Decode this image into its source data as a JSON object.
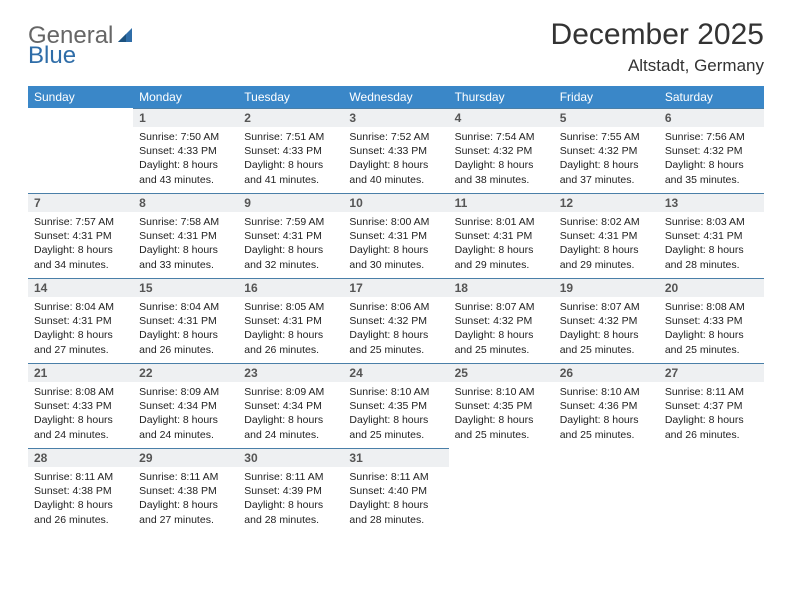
{
  "brand": {
    "part1": "General",
    "part2": "Blue"
  },
  "title": "December 2025",
  "location": "Altstadt, Germany",
  "header_bg": "#3a87c8",
  "header_fg": "#ffffff",
  "daynum_bg": "#eef0f2",
  "daynum_border": "#4a7fa8",
  "text_color": "#222222",
  "page_bg": "#ffffff",
  "fonts": {
    "title_size": 30,
    "location_size": 17,
    "header_size": 12,
    "body_size": 10.5
  },
  "days_of_week": [
    "Sunday",
    "Monday",
    "Tuesday",
    "Wednesday",
    "Thursday",
    "Friday",
    "Saturday"
  ],
  "weeks": [
    [
      null,
      {
        "n": "1",
        "sunrise": "7:50 AM",
        "sunset": "4:33 PM",
        "daylight": "8 hours and 43 minutes."
      },
      {
        "n": "2",
        "sunrise": "7:51 AM",
        "sunset": "4:33 PM",
        "daylight": "8 hours and 41 minutes."
      },
      {
        "n": "3",
        "sunrise": "7:52 AM",
        "sunset": "4:33 PM",
        "daylight": "8 hours and 40 minutes."
      },
      {
        "n": "4",
        "sunrise": "7:54 AM",
        "sunset": "4:32 PM",
        "daylight": "8 hours and 38 minutes."
      },
      {
        "n": "5",
        "sunrise": "7:55 AM",
        "sunset": "4:32 PM",
        "daylight": "8 hours and 37 minutes."
      },
      {
        "n": "6",
        "sunrise": "7:56 AM",
        "sunset": "4:32 PM",
        "daylight": "8 hours and 35 minutes."
      }
    ],
    [
      {
        "n": "7",
        "sunrise": "7:57 AM",
        "sunset": "4:31 PM",
        "daylight": "8 hours and 34 minutes."
      },
      {
        "n": "8",
        "sunrise": "7:58 AM",
        "sunset": "4:31 PM",
        "daylight": "8 hours and 33 minutes."
      },
      {
        "n": "9",
        "sunrise": "7:59 AM",
        "sunset": "4:31 PM",
        "daylight": "8 hours and 32 minutes."
      },
      {
        "n": "10",
        "sunrise": "8:00 AM",
        "sunset": "4:31 PM",
        "daylight": "8 hours and 30 minutes."
      },
      {
        "n": "11",
        "sunrise": "8:01 AM",
        "sunset": "4:31 PM",
        "daylight": "8 hours and 29 minutes."
      },
      {
        "n": "12",
        "sunrise": "8:02 AM",
        "sunset": "4:31 PM",
        "daylight": "8 hours and 29 minutes."
      },
      {
        "n": "13",
        "sunrise": "8:03 AM",
        "sunset": "4:31 PM",
        "daylight": "8 hours and 28 minutes."
      }
    ],
    [
      {
        "n": "14",
        "sunrise": "8:04 AM",
        "sunset": "4:31 PM",
        "daylight": "8 hours and 27 minutes."
      },
      {
        "n": "15",
        "sunrise": "8:04 AM",
        "sunset": "4:31 PM",
        "daylight": "8 hours and 26 minutes."
      },
      {
        "n": "16",
        "sunrise": "8:05 AM",
        "sunset": "4:31 PM",
        "daylight": "8 hours and 26 minutes."
      },
      {
        "n": "17",
        "sunrise": "8:06 AM",
        "sunset": "4:32 PM",
        "daylight": "8 hours and 25 minutes."
      },
      {
        "n": "18",
        "sunrise": "8:07 AM",
        "sunset": "4:32 PM",
        "daylight": "8 hours and 25 minutes."
      },
      {
        "n": "19",
        "sunrise": "8:07 AM",
        "sunset": "4:32 PM",
        "daylight": "8 hours and 25 minutes."
      },
      {
        "n": "20",
        "sunrise": "8:08 AM",
        "sunset": "4:33 PM",
        "daylight": "8 hours and 25 minutes."
      }
    ],
    [
      {
        "n": "21",
        "sunrise": "8:08 AM",
        "sunset": "4:33 PM",
        "daylight": "8 hours and 24 minutes."
      },
      {
        "n": "22",
        "sunrise": "8:09 AM",
        "sunset": "4:34 PM",
        "daylight": "8 hours and 24 minutes."
      },
      {
        "n": "23",
        "sunrise": "8:09 AM",
        "sunset": "4:34 PM",
        "daylight": "8 hours and 24 minutes."
      },
      {
        "n": "24",
        "sunrise": "8:10 AM",
        "sunset": "4:35 PM",
        "daylight": "8 hours and 25 minutes."
      },
      {
        "n": "25",
        "sunrise": "8:10 AM",
        "sunset": "4:35 PM",
        "daylight": "8 hours and 25 minutes."
      },
      {
        "n": "26",
        "sunrise": "8:10 AM",
        "sunset": "4:36 PM",
        "daylight": "8 hours and 25 minutes."
      },
      {
        "n": "27",
        "sunrise": "8:11 AM",
        "sunset": "4:37 PM",
        "daylight": "8 hours and 26 minutes."
      }
    ],
    [
      {
        "n": "28",
        "sunrise": "8:11 AM",
        "sunset": "4:38 PM",
        "daylight": "8 hours and 26 minutes."
      },
      {
        "n": "29",
        "sunrise": "8:11 AM",
        "sunset": "4:38 PM",
        "daylight": "8 hours and 27 minutes."
      },
      {
        "n": "30",
        "sunrise": "8:11 AM",
        "sunset": "4:39 PM",
        "daylight": "8 hours and 28 minutes."
      },
      {
        "n": "31",
        "sunrise": "8:11 AM",
        "sunset": "4:40 PM",
        "daylight": "8 hours and 28 minutes."
      },
      null,
      null,
      null
    ]
  ],
  "labels": {
    "sunrise": "Sunrise:",
    "sunset": "Sunset:",
    "daylight": "Daylight:"
  }
}
